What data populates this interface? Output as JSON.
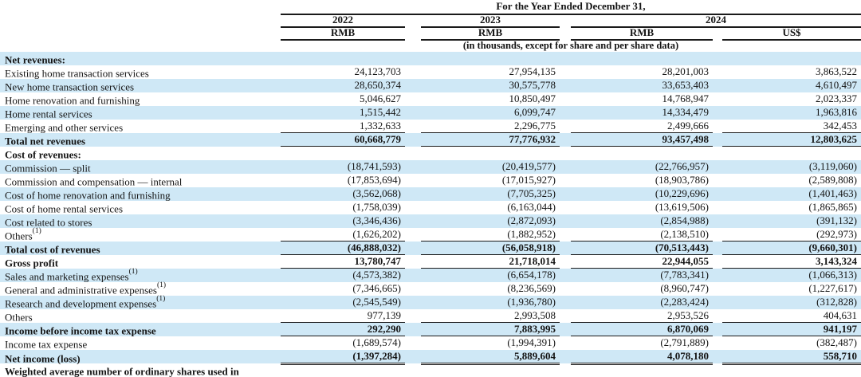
{
  "header": {
    "period_title": "For the Year Ended December 31,",
    "years": [
      "2022",
      "2023",
      "2024"
    ],
    "currencies": [
      "RMB",
      "RMB",
      "RMB",
      "US$"
    ],
    "units_note": "(in thousands, except for share and per share data)"
  },
  "colors": {
    "stripe_blue": "#cfe8f6",
    "rule": "#1a1a1a"
  },
  "rows": [
    {
      "label": "Net revenues:",
      "bold": true,
      "values": [
        "",
        "",
        "",
        ""
      ]
    },
    {
      "label": "Existing home transaction services",
      "values": [
        "24,123,703",
        "27,954,135",
        "28,201,003",
        "3,863,522"
      ]
    },
    {
      "label": "New home transaction services",
      "values": [
        "28,650,374",
        "30,575,778",
        "33,653,403",
        "4,610,497"
      ]
    },
    {
      "label": "Home renovation and furnishing",
      "values": [
        "5,046,627",
        "10,850,497",
        "14,768,947",
        "2,023,337"
      ]
    },
    {
      "label": "Home rental services",
      "values": [
        "1,515,442",
        "6,099,747",
        "14,334,479",
        "1,963,816"
      ]
    },
    {
      "label": "Emerging and other services",
      "rule": "single",
      "values": [
        "1,332,633",
        "2,296,775",
        "2,499,666",
        "342,453"
      ]
    },
    {
      "label": "Total net revenues",
      "bold": true,
      "rule": "single",
      "values": [
        "60,668,779",
        "77,776,932",
        "93,457,498",
        "12,803,625"
      ]
    },
    {
      "label": "Cost of revenues:",
      "bold": true,
      "values": [
        "",
        "",
        "",
        ""
      ]
    },
    {
      "label": "Commission — split",
      "values": [
        "(18,741,593)",
        "(20,419,577)",
        "(22,766,957)",
        "(3,119,060)"
      ]
    },
    {
      "label": "Commission and compensation — internal",
      "values": [
        "(17,853,694)",
        "(17,015,927)",
        "(18,903,786)",
        "(2,589,808)"
      ]
    },
    {
      "label": "Cost of home renovation and furnishing",
      "values": [
        "(3,562,068)",
        "(7,705,325)",
        "(10,229,696)",
        "(1,401,463)"
      ]
    },
    {
      "label": "Cost of home rental services",
      "values": [
        "(1,758,039)",
        "(6,163,044)",
        "(13,619,506)",
        "(1,865,865)"
      ]
    },
    {
      "label": "Cost related to stores",
      "values": [
        "(3,346,436)",
        "(2,872,093)",
        "(2,854,988)",
        "(391,132)"
      ]
    },
    {
      "label": "Others",
      "sup": "(1)",
      "rule": "single",
      "values": [
        "(1,626,202)",
        "(1,882,952)",
        "(2,138,510)",
        "(292,973)"
      ]
    },
    {
      "label": "Total cost of revenues",
      "bold": true,
      "rule": "single",
      "values": [
        "(46,888,032)",
        "(56,058,918)",
        "(70,513,443)",
        "(9,660,301)"
      ]
    },
    {
      "label": "Gross profit",
      "bold": true,
      "rule": "single",
      "values": [
        "13,780,747",
        "21,718,014",
        "22,944,055",
        "3,143,324"
      ]
    },
    {
      "label": "Sales and marketing expenses",
      "sup": "(1)",
      "values": [
        "(4,573,382)",
        "(6,654,178)",
        "(7,783,341)",
        "(1,066,313)"
      ]
    },
    {
      "label": "General and administrative expenses",
      "sup": "(1)",
      "values": [
        "(7,346,665)",
        "(8,236,569)",
        "(8,960,747)",
        "(1,227,617)"
      ]
    },
    {
      "label": "Research and development expenses",
      "sup": "(1)",
      "values": [
        "(2,545,549)",
        "(1,936,780)",
        "(2,283,424)",
        "(312,828)"
      ]
    },
    {
      "label": "Others",
      "rule": "single",
      "values": [
        "977,139",
        "2,993,508",
        "2,953,526",
        "404,631"
      ]
    },
    {
      "label": "Income before income tax expense",
      "bold": true,
      "rule": "single",
      "values": [
        "292,290",
        "7,883,995",
        "6,870,069",
        "941,197"
      ]
    },
    {
      "label": "Income tax expense",
      "values": [
        "(1,689,574)",
        "(1,994,391)",
        "(2,791,889)",
        "(382,487)"
      ]
    },
    {
      "label": "Net income (loss)",
      "bold": true,
      "rule": "double",
      "values": [
        "(1,397,284)",
        "5,889,604",
        "4,078,180",
        "558,710"
      ]
    },
    {
      "label": "Weighted average number of ordinary shares used in",
      "bold": true,
      "values": [
        "",
        "",
        "",
        ""
      ]
    }
  ]
}
